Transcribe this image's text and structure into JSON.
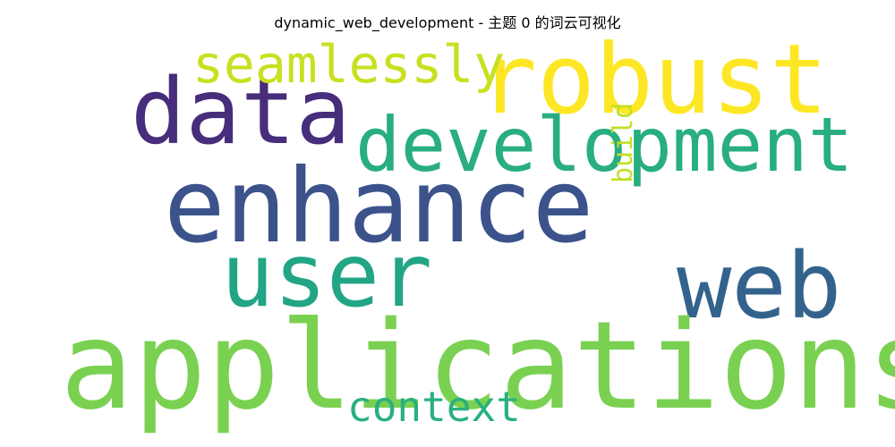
{
  "title": "dynamic_web_development - 主题 0 的词云可视化",
  "words": [
    {
      "text": "robust",
      "color": "#fde725"
    },
    {
      "text": "data",
      "color": "#472d7b"
    },
    {
      "text": "seamlessly",
      "color": "#c8e020"
    },
    {
      "text": "development",
      "color": "#28ae80"
    },
    {
      "text": "enhance",
      "color": "#3b528b"
    },
    {
      "text": "build",
      "color": "#c2df23"
    },
    {
      "text": "user",
      "color": "#21a585"
    },
    {
      "text": "web",
      "color": "#33638d"
    },
    {
      "text": "applications",
      "color": "#7ad151"
    },
    {
      "text": "context",
      "color": "#2ab07f"
    }
  ]
}
